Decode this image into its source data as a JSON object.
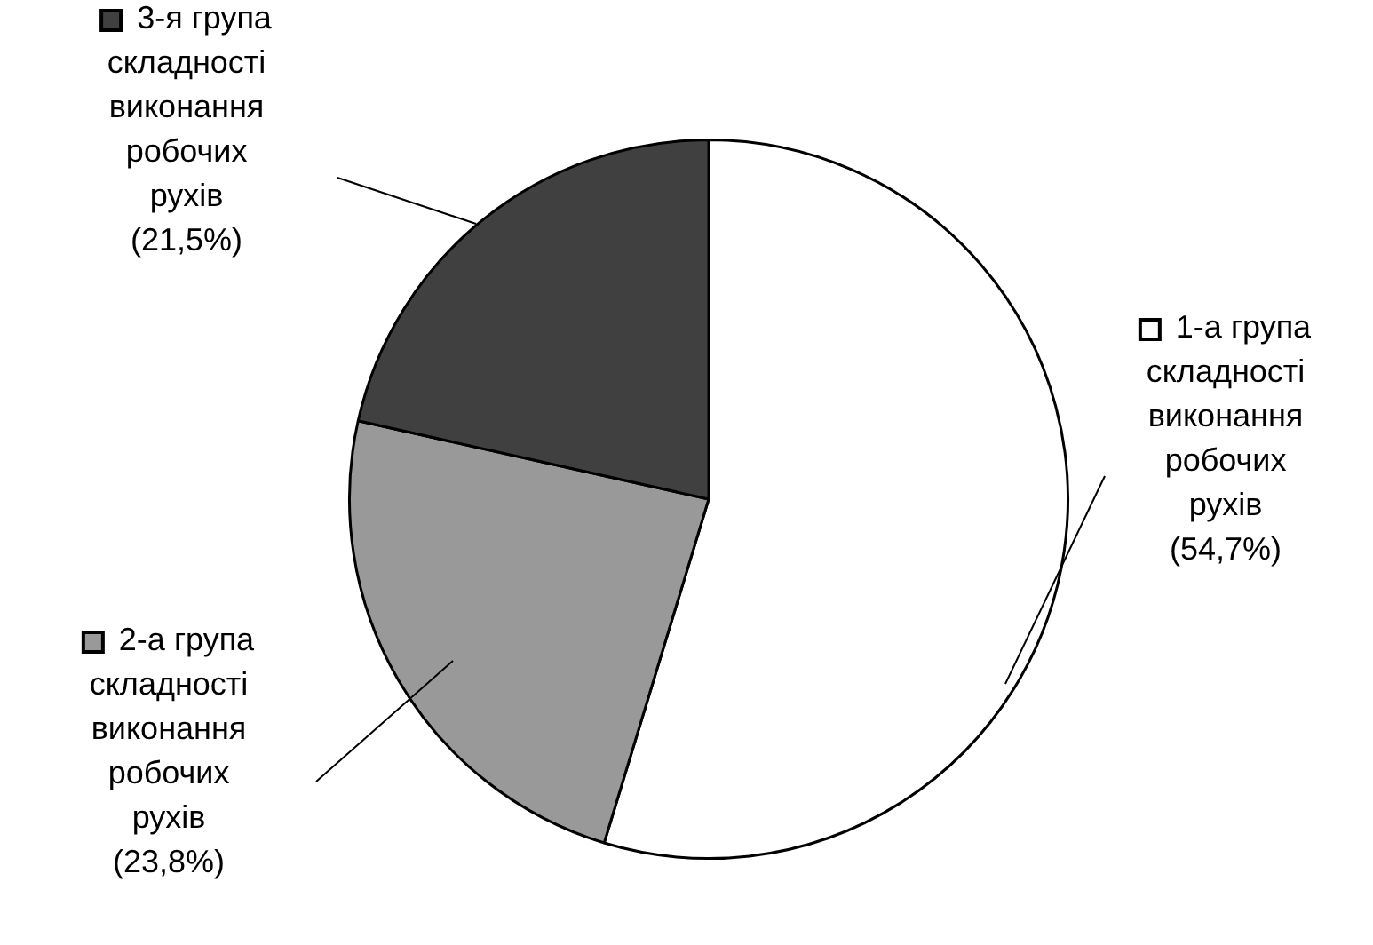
{
  "chart_data": {
    "type": "pie",
    "categories": [
      "1-а група складності виконання робочих рухів",
      "2-а група складності виконання робочих рухів",
      "3-я група складності виконання робочих рухів"
    ],
    "values": [
      54.7,
      23.8,
      21.5
    ],
    "value_labels": [
      "(54,7%)",
      "(23,8%)",
      "(21,5%)"
    ],
    "colors": [
      "#ffffff",
      "#999999",
      "#404040"
    ],
    "legend": "left"
  }
}
